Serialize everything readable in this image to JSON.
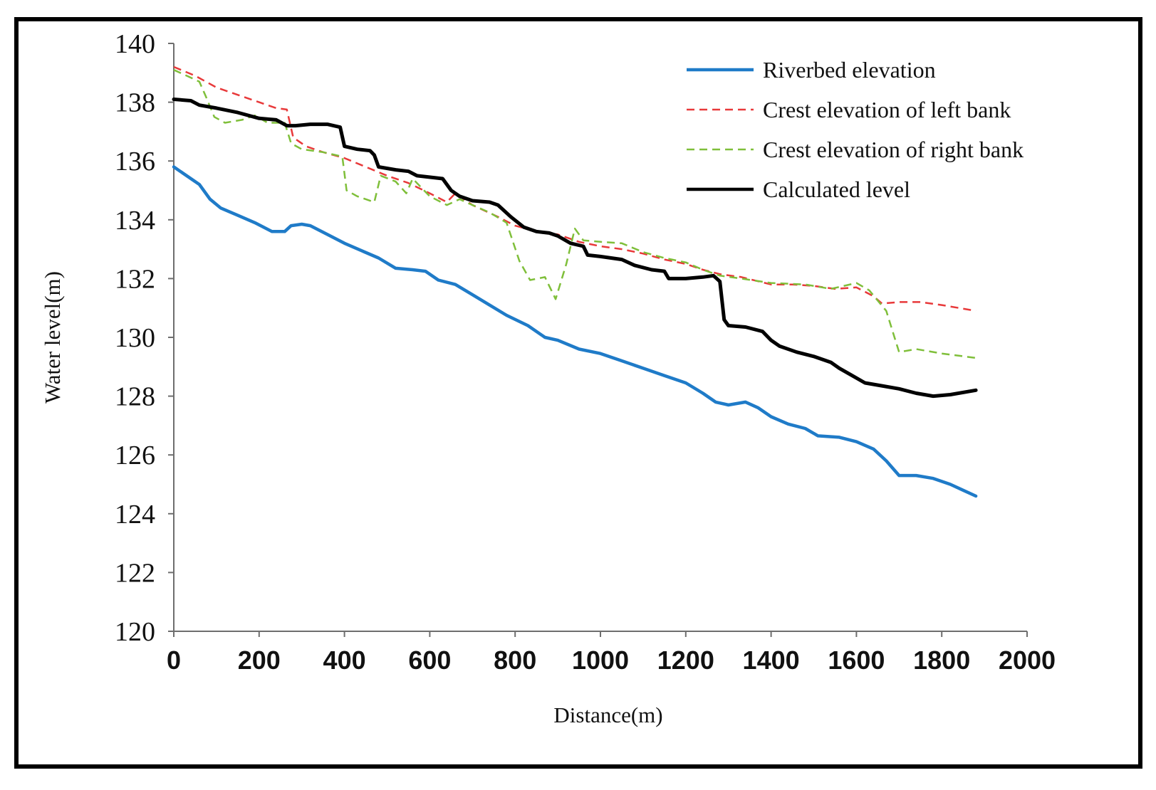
{
  "chart_data": {
    "type": "line",
    "xlabel": "Distance(m)",
    "ylabel": "Water level(m)",
    "xlim": [
      0,
      2000
    ],
    "ylim": [
      120,
      140
    ],
    "xticks": [
      0,
      200,
      400,
      600,
      800,
      1000,
      1200,
      1400,
      1600,
      1800,
      2000
    ],
    "yticks": [
      120,
      122,
      124,
      126,
      128,
      130,
      132,
      134,
      136,
      138,
      140
    ],
    "grid": false,
    "legend_position": "top-right",
    "series": [
      {
        "name": "Riverbed  elevation",
        "color": "#1f7bc8",
        "style": "solid",
        "points": [
          [
            0,
            135.8
          ],
          [
            30,
            135.5
          ],
          [
            60,
            135.2
          ],
          [
            85,
            134.7
          ],
          [
            110,
            134.4
          ],
          [
            150,
            134.15
          ],
          [
            190,
            133.9
          ],
          [
            230,
            133.6
          ],
          [
            260,
            133.6
          ],
          [
            275,
            133.8
          ],
          [
            300,
            133.85
          ],
          [
            320,
            133.8
          ],
          [
            360,
            133.5
          ],
          [
            400,
            133.2
          ],
          [
            440,
            132.95
          ],
          [
            480,
            132.7
          ],
          [
            520,
            132.35
          ],
          [
            560,
            132.3
          ],
          [
            590,
            132.25
          ],
          [
            620,
            131.95
          ],
          [
            660,
            131.8
          ],
          [
            700,
            131.45
          ],
          [
            740,
            131.1
          ],
          [
            780,
            130.75
          ],
          [
            830,
            130.4
          ],
          [
            870,
            130.0
          ],
          [
            900,
            129.9
          ],
          [
            950,
            129.6
          ],
          [
            1000,
            129.45
          ],
          [
            1050,
            129.2
          ],
          [
            1100,
            128.95
          ],
          [
            1150,
            128.7
          ],
          [
            1200,
            128.45
          ],
          [
            1240,
            128.1
          ],
          [
            1270,
            127.8
          ],
          [
            1300,
            127.7
          ],
          [
            1340,
            127.8
          ],
          [
            1370,
            127.6
          ],
          [
            1400,
            127.3
          ],
          [
            1440,
            127.05
          ],
          [
            1480,
            126.9
          ],
          [
            1510,
            126.65
          ],
          [
            1560,
            126.6
          ],
          [
            1600,
            126.45
          ],
          [
            1640,
            126.2
          ],
          [
            1670,
            125.8
          ],
          [
            1700,
            125.3
          ],
          [
            1740,
            125.3
          ],
          [
            1780,
            125.2
          ],
          [
            1820,
            125.0
          ],
          [
            1850,
            124.8
          ],
          [
            1880,
            124.6
          ]
        ]
      },
      {
        "name": "Crest elevation of left bank",
        "color": "#e8393a",
        "style": "dashed",
        "points": [
          [
            0,
            139.2
          ],
          [
            50,
            138.9
          ],
          [
            100,
            138.5
          ],
          [
            150,
            138.25
          ],
          [
            200,
            138.0
          ],
          [
            240,
            137.8
          ],
          [
            265,
            137.75
          ],
          [
            280,
            136.8
          ],
          [
            310,
            136.5
          ],
          [
            350,
            136.3
          ],
          [
            400,
            136.1
          ],
          [
            450,
            135.8
          ],
          [
            500,
            135.5
          ],
          [
            550,
            135.25
          ],
          [
            600,
            134.9
          ],
          [
            640,
            134.6
          ],
          [
            660,
            134.9
          ],
          [
            700,
            134.5
          ],
          [
            760,
            134.1
          ],
          [
            800,
            133.8
          ],
          [
            850,
            133.6
          ],
          [
            900,
            133.5
          ],
          [
            950,
            133.25
          ],
          [
            1000,
            133.1
          ],
          [
            1050,
            133.0
          ],
          [
            1100,
            132.85
          ],
          [
            1150,
            132.65
          ],
          [
            1200,
            132.5
          ],
          [
            1240,
            132.3
          ],
          [
            1280,
            132.15
          ],
          [
            1330,
            132.05
          ],
          [
            1400,
            131.8
          ],
          [
            1450,
            131.8
          ],
          [
            1500,
            131.75
          ],
          [
            1550,
            131.65
          ],
          [
            1600,
            131.7
          ],
          [
            1640,
            131.4
          ],
          [
            1660,
            131.15
          ],
          [
            1700,
            131.2
          ],
          [
            1750,
            131.2
          ],
          [
            1800,
            131.1
          ],
          [
            1880,
            130.9
          ]
        ]
      },
      {
        "name": "Crest elevation of right bank",
        "color": "#7fbf3a",
        "style": "dashed",
        "points": [
          [
            0,
            139.1
          ],
          [
            30,
            138.9
          ],
          [
            60,
            138.7
          ],
          [
            75,
            138.2
          ],
          [
            95,
            137.5
          ],
          [
            120,
            137.3
          ],
          [
            160,
            137.4
          ],
          [
            190,
            137.55
          ],
          [
            220,
            137.3
          ],
          [
            260,
            137.3
          ],
          [
            275,
            136.6
          ],
          [
            300,
            136.4
          ],
          [
            350,
            136.3
          ],
          [
            395,
            136.15
          ],
          [
            405,
            135.0
          ],
          [
            430,
            134.8
          ],
          [
            470,
            134.6
          ],
          [
            485,
            135.5
          ],
          [
            520,
            135.3
          ],
          [
            545,
            134.9
          ],
          [
            560,
            135.4
          ],
          [
            600,
            134.8
          ],
          [
            640,
            134.5
          ],
          [
            670,
            134.7
          ],
          [
            700,
            134.5
          ],
          [
            740,
            134.25
          ],
          [
            780,
            133.9
          ],
          [
            810,
            132.6
          ],
          [
            835,
            131.95
          ],
          [
            870,
            132.05
          ],
          [
            895,
            131.3
          ],
          [
            920,
            132.5
          ],
          [
            940,
            133.7
          ],
          [
            960,
            133.3
          ],
          [
            1000,
            133.25
          ],
          [
            1050,
            133.2
          ],
          [
            1100,
            132.9
          ],
          [
            1150,
            132.7
          ],
          [
            1200,
            132.55
          ],
          [
            1240,
            132.3
          ],
          [
            1280,
            132.1
          ],
          [
            1330,
            132.0
          ],
          [
            1400,
            131.85
          ],
          [
            1480,
            131.8
          ],
          [
            1540,
            131.65
          ],
          [
            1600,
            131.85
          ],
          [
            1630,
            131.6
          ],
          [
            1670,
            130.9
          ],
          [
            1700,
            129.5
          ],
          [
            1740,
            129.6
          ],
          [
            1800,
            129.45
          ],
          [
            1880,
            129.3
          ]
        ]
      },
      {
        "name": "Calculated level",
        "color": "#000000",
        "style": "solid",
        "points": [
          [
            0,
            138.1
          ],
          [
            40,
            138.05
          ],
          [
            60,
            137.9
          ],
          [
            100,
            137.8
          ],
          [
            150,
            137.65
          ],
          [
            200,
            137.45
          ],
          [
            240,
            137.4
          ],
          [
            265,
            137.2
          ],
          [
            285,
            137.2
          ],
          [
            320,
            137.25
          ],
          [
            360,
            137.25
          ],
          [
            390,
            137.15
          ],
          [
            400,
            136.5
          ],
          [
            430,
            136.4
          ],
          [
            460,
            136.35
          ],
          [
            470,
            136.2
          ],
          [
            480,
            135.8
          ],
          [
            520,
            135.7
          ],
          [
            550,
            135.65
          ],
          [
            570,
            135.5
          ],
          [
            630,
            135.4
          ],
          [
            650,
            135.0
          ],
          [
            670,
            134.8
          ],
          [
            700,
            134.65
          ],
          [
            740,
            134.6
          ],
          [
            760,
            134.5
          ],
          [
            790,
            134.1
          ],
          [
            820,
            133.75
          ],
          [
            850,
            133.6
          ],
          [
            880,
            133.55
          ],
          [
            900,
            133.45
          ],
          [
            930,
            133.2
          ],
          [
            960,
            133.1
          ],
          [
            970,
            132.8
          ],
          [
            1000,
            132.75
          ],
          [
            1050,
            132.65
          ],
          [
            1080,
            132.45
          ],
          [
            1120,
            132.3
          ],
          [
            1150,
            132.25
          ],
          [
            1160,
            132.0
          ],
          [
            1200,
            132.0
          ],
          [
            1240,
            132.05
          ],
          [
            1265,
            132.1
          ],
          [
            1280,
            131.9
          ],
          [
            1290,
            130.6
          ],
          [
            1300,
            130.4
          ],
          [
            1340,
            130.35
          ],
          [
            1380,
            130.2
          ],
          [
            1400,
            129.9
          ],
          [
            1420,
            129.7
          ],
          [
            1460,
            129.5
          ],
          [
            1500,
            129.35
          ],
          [
            1540,
            129.15
          ],
          [
            1560,
            128.95
          ],
          [
            1590,
            128.7
          ],
          [
            1620,
            128.45
          ],
          [
            1660,
            128.35
          ],
          [
            1700,
            128.25
          ],
          [
            1740,
            128.1
          ],
          [
            1780,
            128.0
          ],
          [
            1820,
            128.05
          ],
          [
            1880,
            128.2
          ]
        ]
      }
    ]
  }
}
